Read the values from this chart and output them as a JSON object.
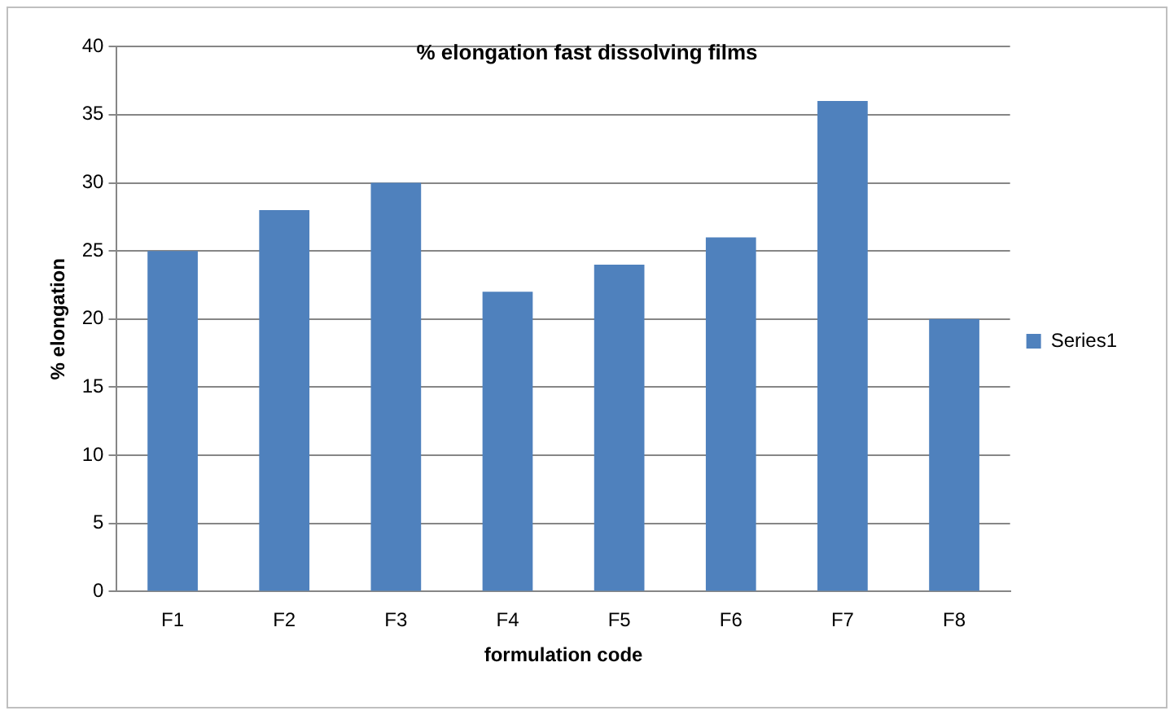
{
  "chart_data": {
    "type": "bar",
    "title": "% elongation fast dissolving films",
    "xlabel": "formulation code",
    "ylabel": "% elongation",
    "categories": [
      "F1",
      "F2",
      "F3",
      "F4",
      "F5",
      "F6",
      "F7",
      "F8"
    ],
    "series": [
      {
        "name": "Series1",
        "color": "#4f81bd",
        "values": [
          25,
          28,
          30,
          22,
          24,
          26,
          36,
          20
        ]
      }
    ],
    "ylim": [
      0,
      40
    ],
    "yticks": [
      0,
      5,
      10,
      15,
      20,
      25,
      30,
      35,
      40
    ],
    "grid": "y",
    "legend": "right"
  }
}
